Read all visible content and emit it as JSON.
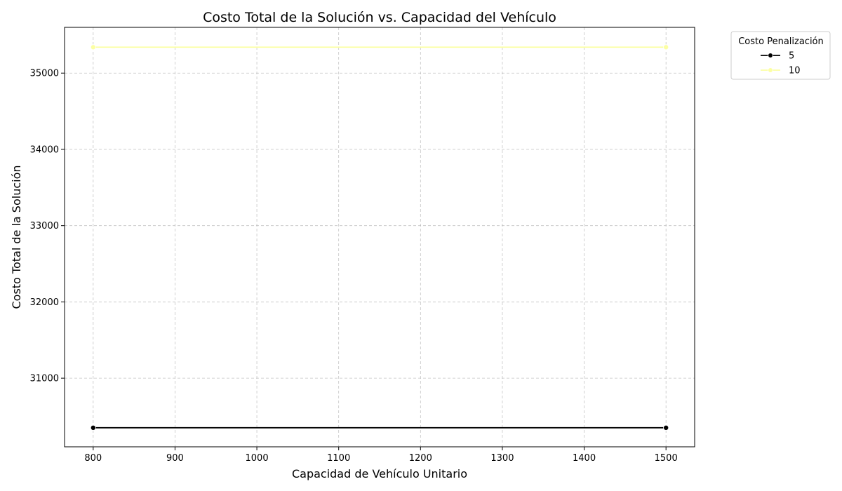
{
  "chart_data": {
    "type": "line",
    "title": "Costo Total de la Solución vs. Capacidad del Vehículo",
    "xlabel": "Capacidad de Vehículo Unitario",
    "ylabel": "Costo Total de la Solución",
    "xlim": [
      765,
      1535
    ],
    "ylim": [
      30100,
      35600
    ],
    "xticks": [
      800,
      900,
      1000,
      1100,
      1200,
      1300,
      1400,
      1500
    ],
    "yticks": [
      31000,
      32000,
      33000,
      34000,
      35000
    ],
    "grid": true,
    "legend": {
      "title": "Costo Penalización",
      "placement": "outside-top-right"
    },
    "series": [
      {
        "name": "5",
        "color": "#000000",
        "marker": "circle",
        "x": [
          800,
          1500
        ],
        "y": [
          30350,
          30350
        ]
      },
      {
        "name": "10",
        "color": "#fcffa4",
        "marker": "circle",
        "x": [
          800,
          1500
        ],
        "y": [
          35340,
          35340
        ]
      }
    ]
  }
}
